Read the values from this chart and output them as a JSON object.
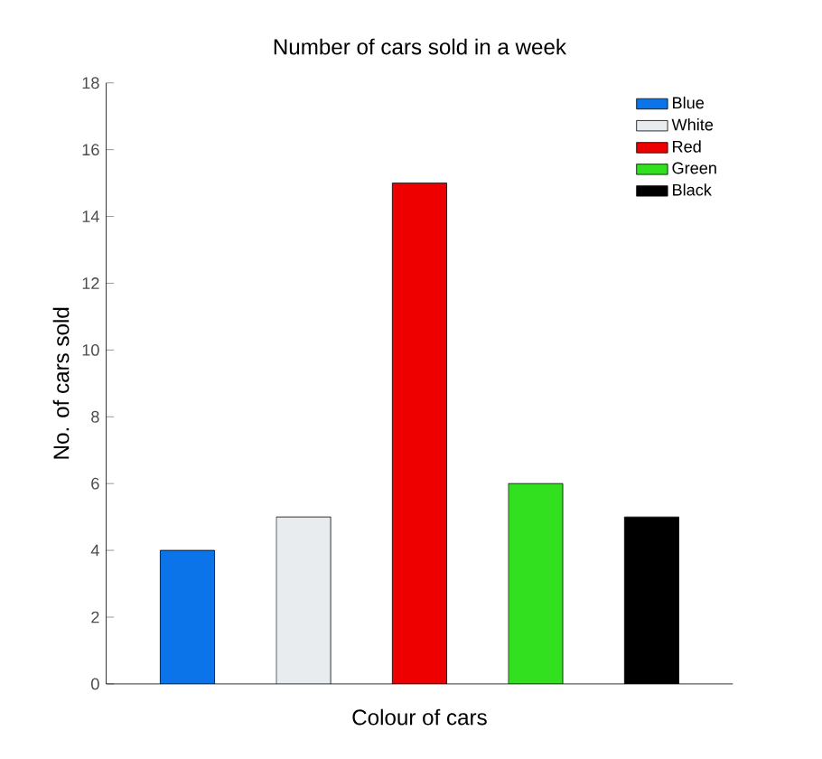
{
  "chart_data": {
    "type": "bar",
    "title": "Number of cars sold in a week",
    "xlabel": "Colour of cars",
    "ylabel": "No. of cars sold",
    "categories": [
      null,
      null,
      null,
      null,
      null
    ],
    "series": [
      {
        "name": "Blue",
        "color": "#0a74e8",
        "values": [
          4,
          null,
          null,
          null,
          null
        ]
      },
      {
        "name": "White",
        "color": "#e8ecef",
        "values": [
          null,
          5,
          null,
          null,
          null
        ]
      },
      {
        "name": "Red",
        "color": "#ee0000",
        "values": [
          null,
          null,
          15,
          null,
          null
        ]
      },
      {
        "name": "Green",
        "color": "#33e020",
        "values": [
          null,
          null,
          null,
          6,
          null
        ]
      },
      {
        "name": "Black",
        "color": "#000000",
        "values": [
          null,
          null,
          null,
          null,
          5
        ]
      }
    ],
    "ylim": [
      0,
      18
    ],
    "yticks": [
      0,
      2,
      4,
      6,
      8,
      10,
      12,
      14,
      16,
      18
    ],
    "legend": "top right",
    "tick_labels": "y"
  }
}
